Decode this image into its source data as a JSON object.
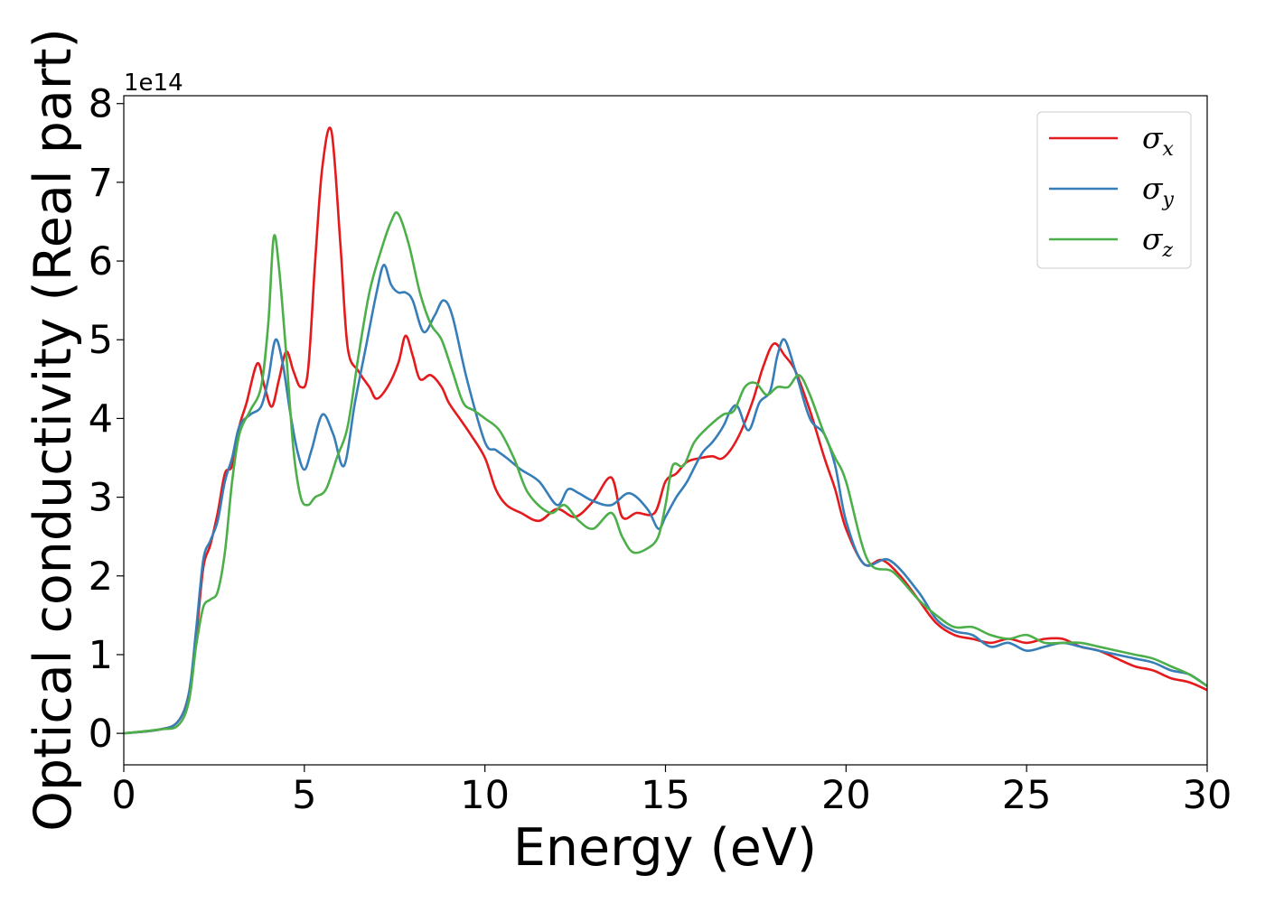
{
  "chart_data": {
    "type": "line",
    "xlabel": "Energy (eV)",
    "ylabel": "Optical conductivity (Real part)",
    "y_offset_text": "1e14",
    "xlim": [
      0,
      30
    ],
    "ylim": [
      -0.4,
      8.1
    ],
    "x_ticks": [
      0,
      5,
      10,
      15,
      20,
      25,
      30
    ],
    "x_tick_labels": [
      "0",
      "5",
      "10",
      "15",
      "20",
      "25",
      "30"
    ],
    "y_ticks": [
      0,
      1,
      2,
      3,
      4,
      5,
      6,
      7,
      8
    ],
    "y_tick_labels": [
      "0",
      "1",
      "2",
      "3",
      "4",
      "5",
      "6",
      "7",
      "8"
    ],
    "grid": false,
    "legend_position": "top-right",
    "series": [
      {
        "name": "σ",
        "subscript": "x",
        "color": "#e41a1c",
        "x": [
          0,
          1,
          1.5,
          1.8,
          2,
          2.2,
          2.4,
          2.6,
          2.8,
          3,
          3.2,
          3.4,
          3.7,
          3.9,
          4.1,
          4.3,
          4.5,
          4.7,
          4.9,
          5.1,
          5.3,
          5.5,
          5.75,
          6,
          6.2,
          6.5,
          6.8,
          7,
          7.3,
          7.6,
          7.8,
          8,
          8.2,
          8.5,
          8.8,
          9,
          9.3,
          9.6,
          10,
          10.3,
          10.6,
          11,
          11.5,
          12,
          12.5,
          13,
          13.5,
          13.8,
          14.2,
          14.7,
          15,
          15.3,
          15.6,
          16,
          16.3,
          16.6,
          17,
          17.4,
          17.7,
          18,
          18.3,
          18.6,
          19,
          19.4,
          19.7,
          20,
          20.5,
          21,
          21.5,
          22,
          22.5,
          23,
          23.5,
          24,
          24.5,
          25,
          25.5,
          26,
          26.5,
          27,
          27.5,
          28,
          28.5,
          29,
          29.5,
          30
        ],
        "y": [
          0,
          0.05,
          0.15,
          0.5,
          1.2,
          2.1,
          2.4,
          2.8,
          3.3,
          3.4,
          3.9,
          4.2,
          4.7,
          4.4,
          4.15,
          4.5,
          4.85,
          4.6,
          4.4,
          4.6,
          6,
          7.2,
          7.65,
          6.2,
          4.9,
          4.6,
          4.4,
          4.25,
          4.4,
          4.7,
          5.05,
          4.8,
          4.5,
          4.55,
          4.4,
          4.2,
          4,
          3.8,
          3.5,
          3.1,
          2.9,
          2.8,
          2.7,
          2.85,
          2.75,
          2.95,
          3.25,
          2.75,
          2.8,
          2.8,
          3.2,
          3.3,
          3.45,
          3.5,
          3.52,
          3.5,
          3.75,
          4.2,
          4.65,
          4.95,
          4.8,
          4.6,
          4.1,
          3.5,
          3.1,
          2.6,
          2.15,
          2.2,
          2.0,
          1.7,
          1.4,
          1.25,
          1.2,
          1.15,
          1.2,
          1.15,
          1.2,
          1.2,
          1.1,
          1.05,
          0.95,
          0.85,
          0.8,
          0.7,
          0.65,
          0.55
        ]
      },
      {
        "name": "σ",
        "subscript": "y",
        "color": "#377eb8",
        "x": [
          0,
          1,
          1.5,
          1.8,
          2,
          2.2,
          2.4,
          2.6,
          2.8,
          3,
          3.2,
          3.5,
          3.8,
          4.0,
          4.2,
          4.4,
          4.6,
          4.8,
          5.0,
          5.2,
          5.5,
          5.8,
          6.1,
          6.4,
          6.7,
          7.0,
          7.2,
          7.4,
          7.6,
          7.8,
          8,
          8.3,
          8.6,
          8.85,
          9.1,
          9.5,
          10,
          10.3,
          10.6,
          11,
          11.5,
          12,
          12.3,
          12.6,
          13,
          13.5,
          14,
          14.5,
          14.8,
          15,
          15.3,
          15.6,
          16,
          16.3,
          16.6,
          16.8,
          17,
          17.3,
          17.6,
          17.9,
          18.1,
          18.3,
          18.6,
          19,
          19.4,
          19.7,
          20,
          20.5,
          21.2,
          22,
          22.5,
          23,
          23.5,
          24,
          24.5,
          25,
          25.5,
          26,
          26.5,
          27,
          27.5,
          28,
          28.5,
          29,
          29.5,
          30
        ],
        "y": [
          0,
          0.05,
          0.15,
          0.5,
          1.3,
          2.2,
          2.45,
          2.7,
          3.2,
          3.5,
          3.9,
          4.05,
          4.15,
          4.5,
          5.0,
          4.7,
          4.1,
          3.6,
          3.35,
          3.6,
          4.05,
          3.8,
          3.4,
          4.2,
          4.9,
          5.6,
          5.95,
          5.7,
          5.6,
          5.6,
          5.5,
          5.1,
          5.3,
          5.5,
          5.3,
          4.5,
          3.7,
          3.6,
          3.5,
          3.35,
          3.2,
          2.9,
          3.1,
          3.05,
          2.95,
          2.9,
          3.05,
          2.85,
          2.6,
          2.75,
          3.0,
          3.2,
          3.55,
          3.7,
          3.9,
          4.1,
          4.15,
          3.85,
          4.2,
          4.35,
          4.8,
          5.0,
          4.6,
          4.0,
          3.8,
          3.4,
          2.7,
          2.15,
          2.2,
          1.8,
          1.45,
          1.3,
          1.25,
          1.1,
          1.15,
          1.05,
          1.1,
          1.15,
          1.1,
          1.05,
          1.0,
          0.95,
          0.9,
          0.8,
          0.75,
          0.6
        ]
      },
      {
        "name": "σ",
        "subscript": "z",
        "color": "#4daf4a",
        "x": [
          0,
          1,
          1.5,
          1.8,
          2,
          2.2,
          2.4,
          2.6,
          2.8,
          3,
          3.2,
          3.5,
          3.8,
          4.0,
          4.15,
          4.3,
          4.5,
          4.7,
          4.9,
          5.1,
          5.3,
          5.6,
          5.9,
          6.2,
          6.5,
          6.8,
          7.1,
          7.4,
          7.6,
          7.9,
          8.2,
          8.5,
          8.8,
          9.1,
          9.4,
          9.7,
          10,
          10.4,
          10.8,
          11.2,
          11.8,
          12.2,
          12.6,
          13,
          13.5,
          13.8,
          14.1,
          14.5,
          14.8,
          15,
          15.2,
          15.5,
          15.8,
          16.2,
          16.6,
          16.9,
          17.2,
          17.5,
          17.8,
          18.1,
          18.4,
          18.7,
          19,
          19.4,
          19.7,
          20,
          20.6,
          21.3,
          22,
          22.5,
          23,
          23.5,
          24,
          24.5,
          25,
          25.5,
          26,
          26.5,
          27,
          27.5,
          28,
          28.5,
          29,
          29.5,
          30
        ],
        "y": [
          0,
          0.05,
          0.1,
          0.4,
          1.1,
          1.6,
          1.7,
          1.8,
          2.3,
          3.2,
          3.8,
          4.1,
          4.4,
          5.2,
          6.3,
          5.9,
          4.8,
          3.6,
          3.0,
          2.9,
          3.0,
          3.1,
          3.5,
          3.9,
          4.8,
          5.6,
          6.1,
          6.5,
          6.6,
          6.2,
          5.6,
          5.2,
          5.0,
          4.6,
          4.2,
          4.1,
          4.0,
          3.85,
          3.5,
          3.05,
          2.8,
          2.9,
          2.7,
          2.6,
          2.8,
          2.5,
          2.3,
          2.35,
          2.5,
          2.9,
          3.4,
          3.4,
          3.7,
          3.9,
          4.05,
          4.1,
          4.4,
          4.45,
          4.3,
          4.4,
          4.4,
          4.55,
          4.3,
          3.8,
          3.5,
          3.2,
          2.2,
          2.05,
          1.7,
          1.5,
          1.35,
          1.35,
          1.25,
          1.2,
          1.25,
          1.15,
          1.15,
          1.15,
          1.1,
          1.05,
          1.0,
          0.95,
          0.85,
          0.75,
          0.6
        ]
      }
    ]
  }
}
